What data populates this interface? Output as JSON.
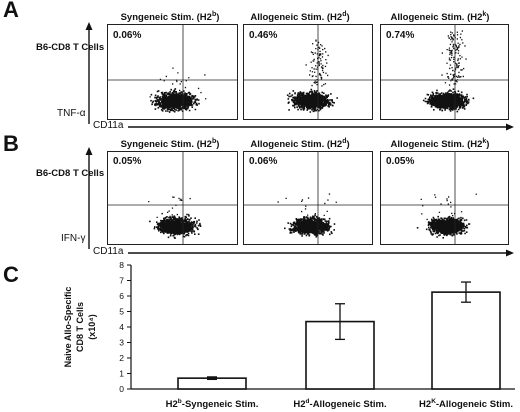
{
  "panels": {
    "a": {
      "letter": "A",
      "row_label": "B6-CD8 T Cells",
      "y_axis": "TNF-α",
      "x_axis": "CD11a",
      "columns": [
        {
          "title_base": "Syngeneic Stim. (H2",
          "haplotype": "b",
          "close": ")",
          "percent": "0.06%"
        },
        {
          "title_base": "Allogeneic Stim. (H2",
          "haplotype": "d",
          "close": ")",
          "percent": "0.46%"
        },
        {
          "title_base": "Allogeneic Stim. (H2",
          "haplotype": "k",
          "close": ")",
          "percent": "0.74%"
        }
      ]
    },
    "b": {
      "letter": "B",
      "row_label": "B6-CD8 T Cells",
      "y_axis": "IFN-γ",
      "x_axis": "CD11a",
      "columns": [
        {
          "title_base": "Syngeneic Stim. (H2",
          "haplotype": "b",
          "close": ")",
          "percent": "0.05%"
        },
        {
          "title_base": "Allogeneic Stim. (H2",
          "haplotype": "d",
          "close": ")",
          "percent": "0.06%"
        },
        {
          "title_base": "Allogeneic Stim. (H2",
          "haplotype": "k",
          "close": ")",
          "percent": "0.05%"
        }
      ]
    },
    "c": {
      "letter": "C"
    }
  },
  "chart_data": {
    "type": "bar",
    "categories": [
      {
        "pre": "H2",
        "sup": "b",
        "post": "-Syngeneic Stim."
      },
      {
        "pre": "H2",
        "sup": "d",
        "post": "-Allogeneic Stim."
      },
      {
        "pre": "H2",
        "sup": "K",
        "post": "-Allogeneic Stim."
      }
    ],
    "values": [
      0.7,
      4.35,
      6.25
    ],
    "errors": [
      0.08,
      1.15,
      0.65
    ],
    "ylabel_line1": "Naive Allo-Specific",
    "ylabel_line2": "CD8 T Cells",
    "yunit": "(x10⁴)",
    "ylim": [
      0,
      8
    ],
    "yticks": [
      "0",
      "1",
      "2",
      "3",
      "4",
      "5",
      "6",
      "7",
      "8"
    ],
    "grid": false,
    "bar_fill": "#ffffff",
    "bar_stroke": "#111111"
  }
}
